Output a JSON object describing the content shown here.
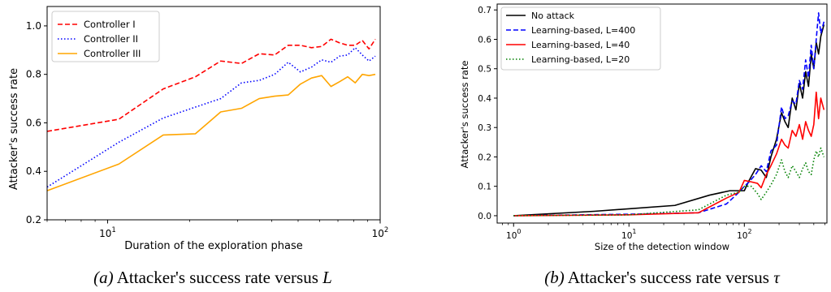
{
  "chart_data": [
    {
      "type": "line",
      "caption": {
        "tag": "(a)",
        "text": "Attacker's success rate versus ",
        "symbol": "L"
      },
      "xlabel": "Duration of the exploration phase",
      "ylabel": "Attacker's success rate",
      "xscale": "log",
      "xlim": [
        6,
        100
      ],
      "ylim": [
        0.2,
        1.08
      ],
      "xticks": [
        {
          "value": 10,
          "base": "10",
          "exp": "1"
        },
        {
          "value": 100,
          "base": "10",
          "exp": "2"
        }
      ],
      "yticks": [
        0.2,
        0.4,
        0.6,
        0.8,
        1.0
      ],
      "ytick_labels": [
        "0.2",
        "0.4",
        "0.6",
        "0.8",
        "1.0"
      ],
      "legend": "top-left",
      "series": [
        {
          "name": "Controller I",
          "color": "#ff0000",
          "dash": "dashed",
          "points": [
            [
              6,
              0.565
            ],
            [
              11,
              0.615
            ],
            [
              16,
              0.74
            ],
            [
              21,
              0.79
            ],
            [
              26,
              0.855
            ],
            [
              31,
              0.845
            ],
            [
              36,
              0.885
            ],
            [
              41,
              0.88
            ],
            [
              46,
              0.92
            ],
            [
              51,
              0.92
            ],
            [
              56,
              0.91
            ],
            [
              61,
              0.915
            ],
            [
              66,
              0.945
            ],
            [
              71,
              0.93
            ],
            [
              76,
              0.92
            ],
            [
              81,
              0.92
            ],
            [
              86,
              0.94
            ],
            [
              91,
              0.905
            ],
            [
              96,
              0.945
            ]
          ]
        },
        {
          "name": "Controller II",
          "color": "#0000ff",
          "dash": "dotted",
          "points": [
            [
              6,
              0.335
            ],
            [
              11,
              0.52
            ],
            [
              16,
              0.62
            ],
            [
              21,
              0.665
            ],
            [
              26,
              0.7
            ],
            [
              31,
              0.765
            ],
            [
              36,
              0.775
            ],
            [
              41,
              0.8
            ],
            [
              46,
              0.85
            ],
            [
              51,
              0.81
            ],
            [
              56,
              0.83
            ],
            [
              61,
              0.86
            ],
            [
              66,
              0.85
            ],
            [
              71,
              0.875
            ],
            [
              76,
              0.88
            ],
            [
              81,
              0.91
            ],
            [
              86,
              0.88
            ],
            [
              91,
              0.855
            ],
            [
              96,
              0.875
            ]
          ]
        },
        {
          "name": "Controller III",
          "color": "#ffa500",
          "dash": "solid",
          "points": [
            [
              6,
              0.32
            ],
            [
              11,
              0.43
            ],
            [
              16,
              0.55
            ],
            [
              21,
              0.555
            ],
            [
              26,
              0.645
            ],
            [
              31,
              0.66
            ],
            [
              36,
              0.7
            ],
            [
              41,
              0.71
            ],
            [
              46,
              0.715
            ],
            [
              51,
              0.76
            ],
            [
              56,
              0.785
            ],
            [
              61,
              0.795
            ],
            [
              66,
              0.75
            ],
            [
              71,
              0.77
            ],
            [
              76,
              0.79
            ],
            [
              81,
              0.765
            ],
            [
              86,
              0.8
            ],
            [
              91,
              0.795
            ],
            [
              96,
              0.8
            ]
          ]
        }
      ]
    },
    {
      "type": "line",
      "caption": {
        "tag": "(b)",
        "text": "Attacker's success rate versus ",
        "symbol": "τ"
      },
      "xlabel": "Size of the detection window",
      "ylabel": "Attacker's success rate",
      "xscale": "log",
      "xlim": [
        0.72,
        520
      ],
      "ylim": [
        -0.025,
        0.72
      ],
      "xticks": [
        {
          "value": 1,
          "base": "10",
          "exp": "0"
        },
        {
          "value": 10,
          "base": "10",
          "exp": "1"
        },
        {
          "value": 100,
          "base": "10",
          "exp": "2"
        }
      ],
      "yticks": [
        0,
        0.1,
        0.2,
        0.3,
        0.4,
        0.5,
        0.6,
        0.7
      ],
      "ytick_labels": [
        "0.0",
        "0.1",
        "0.2",
        "0.3",
        "0.4",
        "0.5",
        "0.6",
        "0.7"
      ],
      "legend": "top-left",
      "series": [
        {
          "name": "No attack",
          "color": "#000000",
          "dash": "solid",
          "points": [
            [
              1,
              0
            ],
            [
              5,
              0.015
            ],
            [
              25,
              0.035
            ],
            [
              50,
              0.07
            ],
            [
              75,
              0.085
            ],
            [
              100,
              0.085
            ],
            [
              110,
              0.12
            ],
            [
              125,
              0.16
            ],
            [
              140,
              0.155
            ],
            [
              155,
              0.13
            ],
            [
              170,
              0.2
            ],
            [
              190,
              0.26
            ],
            [
              210,
              0.35
            ],
            [
              225,
              0.32
            ],
            [
              240,
              0.3
            ],
            [
              260,
              0.4
            ],
            [
              280,
              0.36
            ],
            [
              300,
              0.45
            ],
            [
              320,
              0.4
            ],
            [
              340,
              0.49
            ],
            [
              360,
              0.44
            ],
            [
              380,
              0.55
            ],
            [
              400,
              0.5
            ],
            [
              420,
              0.59
            ],
            [
              440,
              0.55
            ],
            [
              460,
              0.61
            ],
            [
              490,
              0.65
            ]
          ]
        },
        {
          "name": "Learning-based, L=400",
          "color": "#0000ff",
          "dash": "dashed",
          "points": [
            [
              1,
              0
            ],
            [
              10,
              0.005
            ],
            [
              40,
              0.01
            ],
            [
              70,
              0.04
            ],
            [
              90,
              0.08
            ],
            [
              100,
              0.1
            ],
            [
              110,
              0.115
            ],
            [
              125,
              0.14
            ],
            [
              140,
              0.17
            ],
            [
              155,
              0.15
            ],
            [
              170,
              0.22
            ],
            [
              190,
              0.24
            ],
            [
              210,
              0.37
            ],
            [
              225,
              0.33
            ],
            [
              240,
              0.34
            ],
            [
              260,
              0.39
            ],
            [
              280,
              0.38
            ],
            [
              300,
              0.46
            ],
            [
              320,
              0.43
            ],
            [
              340,
              0.53
            ],
            [
              360,
              0.47
            ],
            [
              380,
              0.58
            ],
            [
              400,
              0.5
            ],
            [
              420,
              0.6
            ],
            [
              440,
              0.69
            ],
            [
              460,
              0.62
            ],
            [
              490,
              0.66
            ]
          ]
        },
        {
          "name": "Learning-based, L=40",
          "color": "#ff0000",
          "dash": "solid",
          "points": [
            [
              1,
              0
            ],
            [
              10,
              0.003
            ],
            [
              40,
              0.01
            ],
            [
              70,
              0.06
            ],
            [
              90,
              0.08
            ],
            [
              100,
              0.12
            ],
            [
              115,
              0.115
            ],
            [
              130,
              0.11
            ],
            [
              140,
              0.095
            ],
            [
              155,
              0.14
            ],
            [
              170,
              0.17
            ],
            [
              190,
              0.21
            ],
            [
              210,
              0.26
            ],
            [
              225,
              0.24
            ],
            [
              240,
              0.23
            ],
            [
              260,
              0.29
            ],
            [
              280,
              0.27
            ],
            [
              300,
              0.31
            ],
            [
              320,
              0.26
            ],
            [
              340,
              0.32
            ],
            [
              360,
              0.29
            ],
            [
              380,
              0.27
            ],
            [
              400,
              0.31
            ],
            [
              420,
              0.42
            ],
            [
              440,
              0.33
            ],
            [
              460,
              0.4
            ],
            [
              490,
              0.36
            ]
          ]
        },
        {
          "name": "Learning-based, L=20",
          "color": "#008000",
          "dash": "dotted",
          "points": [
            [
              1,
              0
            ],
            [
              10,
              0.003
            ],
            [
              40,
              0.02
            ],
            [
              70,
              0.07
            ],
            [
              90,
              0.08
            ],
            [
              100,
              0.1
            ],
            [
              115,
              0.1
            ],
            [
              130,
              0.075
            ],
            [
              140,
              0.055
            ],
            [
              155,
              0.08
            ],
            [
              170,
              0.105
            ],
            [
              190,
              0.14
            ],
            [
              210,
              0.19
            ],
            [
              225,
              0.15
            ],
            [
              240,
              0.13
            ],
            [
              260,
              0.17
            ],
            [
              280,
              0.15
            ],
            [
              300,
              0.13
            ],
            [
              320,
              0.16
            ],
            [
              340,
              0.18
            ],
            [
              360,
              0.15
            ],
            [
              380,
              0.14
            ],
            [
              400,
              0.19
            ],
            [
              420,
              0.22
            ],
            [
              440,
              0.2
            ],
            [
              460,
              0.23
            ],
            [
              490,
              0.2
            ]
          ]
        }
      ]
    }
  ]
}
